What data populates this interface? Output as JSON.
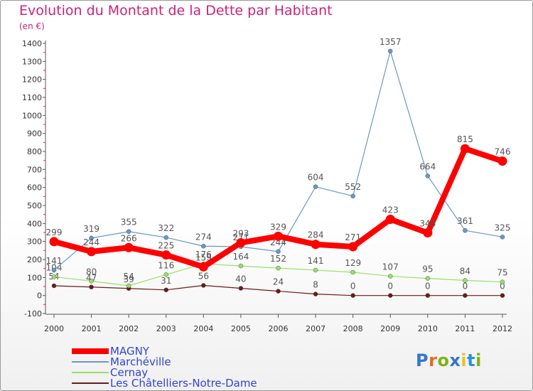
{
  "header": {
    "title": "Evolution du Montant de la Dette par Habitant",
    "unit": "(en €)"
  },
  "logo": {
    "text": "Proxiti",
    "letter_colors": [
      "#3377cc",
      "#e46b1c",
      "#7fb31b",
      "#3377cc",
      "#e5c22d",
      "#2f8fd8",
      "#7fb31b"
    ]
  },
  "chart_data": {
    "type": "line",
    "x": [
      "2000",
      "2001",
      "2002",
      "2003",
      "2004",
      "2005",
      "2006",
      "2007",
      "2008",
      "2009",
      "2010",
      "2011",
      "2012"
    ],
    "ylim": [
      -100,
      1400
    ],
    "yticks": [
      -100,
      0,
      100,
      200,
      300,
      400,
      500,
      600,
      700,
      800,
      900,
      1000,
      1100,
      1200,
      1300,
      1400
    ],
    "grid": false,
    "legend_position": "bottom-left",
    "series": [
      {
        "name": "Les Châtelliers-Notre-Dame",
        "color": "#6b1a1a",
        "values": [
          54,
          47,
          39,
          31,
          56,
          40,
          24,
          8,
          0,
          0,
          0,
          0,
          0
        ],
        "labels": [
          "54",
          "47",
          "39",
          "31",
          "56",
          "40",
          "24",
          "8",
          "0",
          "0",
          "0",
          "0",
          "0"
        ]
      },
      {
        "name": "Cernay",
        "color": "#99e066",
        "values": [
          104,
          80,
          54,
          116,
          176,
          164,
          152,
          141,
          129,
          107,
          95,
          84,
          75
        ],
        "labels": [
          "104",
          "80",
          "54",
          "116",
          "176",
          "164",
          "152",
          "141",
          "129",
          "107",
          "95",
          "84",
          "75"
        ]
      },
      {
        "name": "Marchéville",
        "color": "#6699cc",
        "values": [
          141,
          319,
          355,
          322,
          274,
          271,
          244,
          604,
          552,
          1357,
          664,
          361,
          325
        ],
        "labels": [
          "141",
          "319",
          "355",
          "322",
          "274",
          "271",
          "244",
          "604",
          "552",
          "1357",
          "664",
          "361",
          "325"
        ]
      },
      {
        "name": "MAGNY",
        "color": "#ff0000",
        "values": [
          299,
          244,
          266,
          225,
          159,
          293,
          329,
          284,
          271,
          423,
          348,
          815,
          746
        ],
        "labels": [
          "299",
          "244",
          "266",
          "225",
          "159",
          "293",
          "329",
          "284",
          "271",
          "423",
          "348",
          "815",
          "746"
        ]
      }
    ]
  },
  "legend": {
    "items": [
      {
        "label": "MAGNY",
        "color": "#ff0000"
      },
      {
        "label": "Marchéville",
        "color": "#6699cc"
      },
      {
        "label": "Cernay",
        "color": "#99e066"
      },
      {
        "label": "Les Châtelliers-Notre-Dame",
        "color": "#6b1a1a"
      }
    ]
  }
}
